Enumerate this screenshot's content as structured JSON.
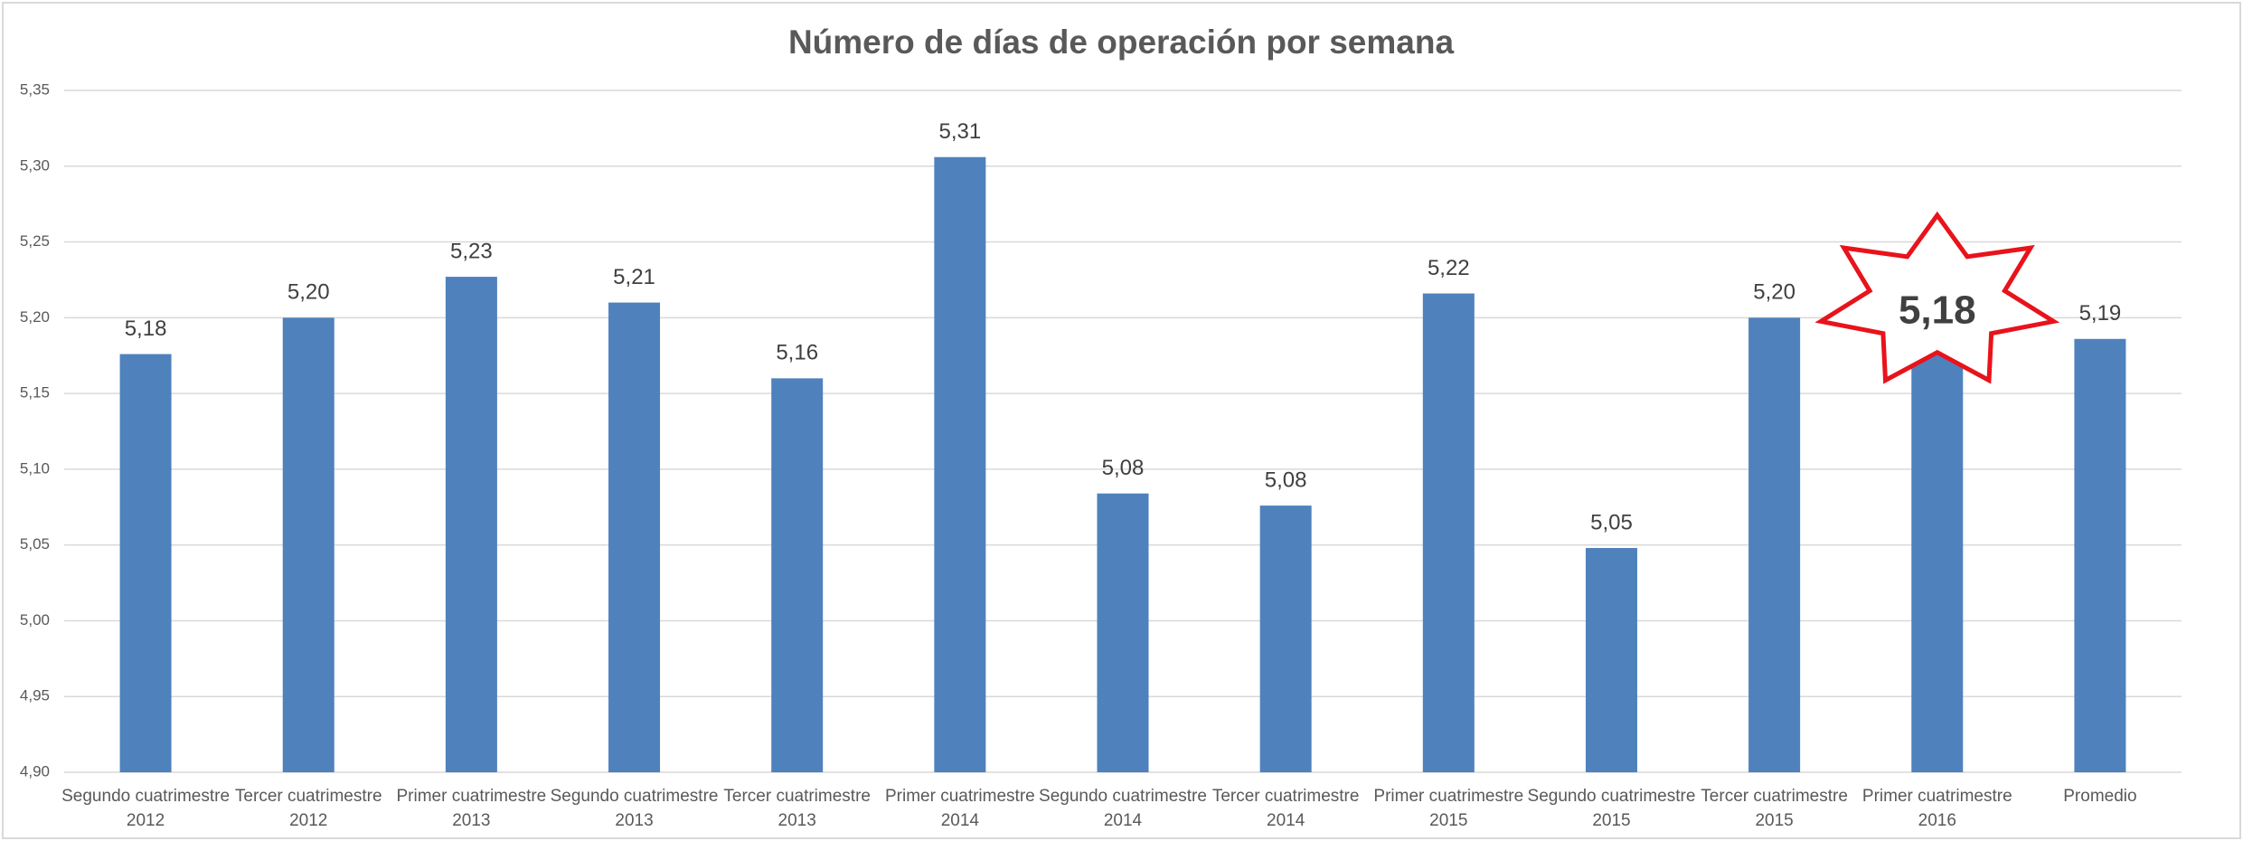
{
  "chart_data": {
    "type": "bar",
    "title": "Número de días de operación por semana",
    "categories": [
      [
        "Segundo cuatrimestre",
        "2012"
      ],
      [
        "Tercer cuatrimestre",
        "2012"
      ],
      [
        "Primer cuatrimestre",
        "2013"
      ],
      [
        "Segundo cuatrimestre",
        "2013"
      ],
      [
        "Tercer cuatrimestre",
        "2013"
      ],
      [
        "Primer cuatrimestre",
        "2014"
      ],
      [
        "Segundo cuatrimestre",
        "2014"
      ],
      [
        "Tercer cuatrimestre",
        "2014"
      ],
      [
        "Primer cuatrimestre",
        "2015"
      ],
      [
        "Segundo cuatrimestre",
        "2015"
      ],
      [
        "Tercer cuatrimestre",
        "2015"
      ],
      [
        "Primer cuatrimestre",
        "2016"
      ],
      [
        "Promedio"
      ]
    ],
    "values": [
      5.176,
      5.2,
      5.227,
      5.21,
      5.16,
      5.306,
      5.084,
      5.076,
      5.216,
      5.048,
      5.2,
      5.178,
      5.186
    ],
    "value_labels": [
      "5,18",
      "5,20",
      "5,23",
      "5,21",
      "5,16",
      "5,31",
      "5,08",
      "5,08",
      "5,22",
      "5,05",
      "5,20",
      "5,18",
      "5,19"
    ],
    "color": "#4f81bd",
    "ylim": [
      4.9,
      5.35
    ],
    "yticks": [
      {
        "value": 4.9,
        "label": "4,90"
      },
      {
        "value": 4.95,
        "label": "4,95"
      },
      {
        "value": 5.0,
        "label": "5,00"
      },
      {
        "value": 5.05,
        "label": "5,05"
      },
      {
        "value": 5.1,
        "label": "5,10"
      },
      {
        "value": 5.15,
        "label": "5,15"
      },
      {
        "value": 5.2,
        "label": "5,20"
      },
      {
        "value": 5.25,
        "label": "5,25"
      },
      {
        "value": 5.3,
        "label": "5,30"
      },
      {
        "value": 5.35,
        "label": "5,35"
      }
    ],
    "grid": true,
    "highlight": {
      "category_index": 11,
      "color": "#e8131b"
    }
  }
}
